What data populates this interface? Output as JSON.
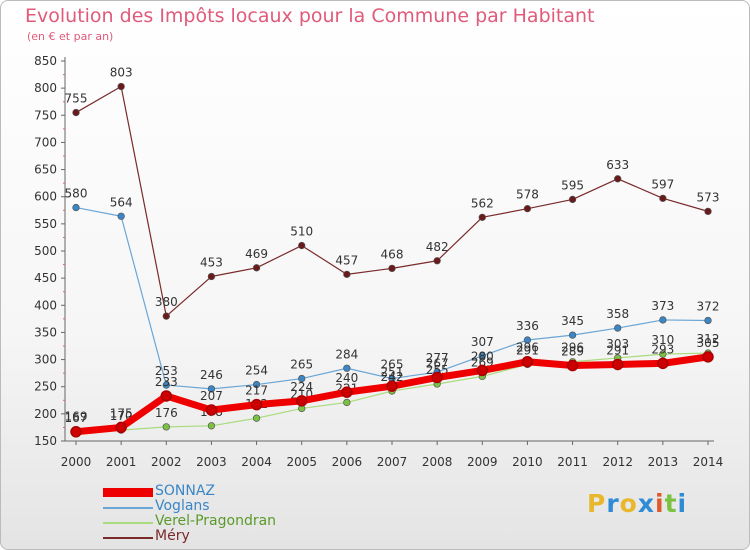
{
  "title": "Evolution des Impôts locaux pour la Commune par Habitant",
  "subtitle": "(en € et par an)",
  "logo": "Proxiti",
  "chart_data": {
    "type": "line",
    "x": [
      "2000",
      "2001",
      "2002",
      "2003",
      "2004",
      "2005",
      "2006",
      "2007",
      "2008",
      "2009",
      "2010",
      "2011",
      "2012",
      "2013",
      "2014"
    ],
    "ylim": [
      150,
      850
    ],
    "yticks": [
      150,
      200,
      250,
      300,
      350,
      400,
      450,
      500,
      550,
      600,
      650,
      700,
      750,
      800,
      850
    ],
    "grid": false,
    "legend_position": "bottom-left",
    "series": [
      {
        "name": "Méry",
        "color": "#7a2a2a",
        "marker": "#6a1a1a",
        "width": 1.2,
        "values": [
          755,
          803,
          380,
          453,
          469,
          510,
          457,
          468,
          482,
          562,
          578,
          595,
          633,
          597,
          573
        ]
      },
      {
        "name": "Voglans",
        "color": "#6aa6d6",
        "marker": "#3a86c6",
        "width": 1.2,
        "values": [
          580,
          564,
          253,
          246,
          254,
          265,
          284,
          265,
          277,
          307,
          336,
          345,
          358,
          373,
          372
        ]
      },
      {
        "name": "Verel-Pragondran",
        "color": "#a8dc7c",
        "marker": "#7cc242",
        "width": 1.2,
        "values": [
          169,
          170,
          176,
          178,
          192,
          210,
          221,
          242,
          255,
          269,
          291,
          296,
          303,
          310,
          312
        ]
      },
      {
        "name": "SONNAZ",
        "color": "#ee0000",
        "marker": "#cc0000",
        "width": 7,
        "values": [
          167,
          175,
          233,
          207,
          217,
          224,
          240,
          251,
          267,
          280,
          296,
          289,
          291,
          293,
          305
        ]
      }
    ],
    "legend": [
      "SONNAZ",
      "Voglans",
      "Verel-Pragondran",
      "Méry"
    ],
    "legend_colors": [
      "#ee0000",
      "#6aa6d6",
      "#a8dc7c",
      "#7a2a2a"
    ]
  }
}
